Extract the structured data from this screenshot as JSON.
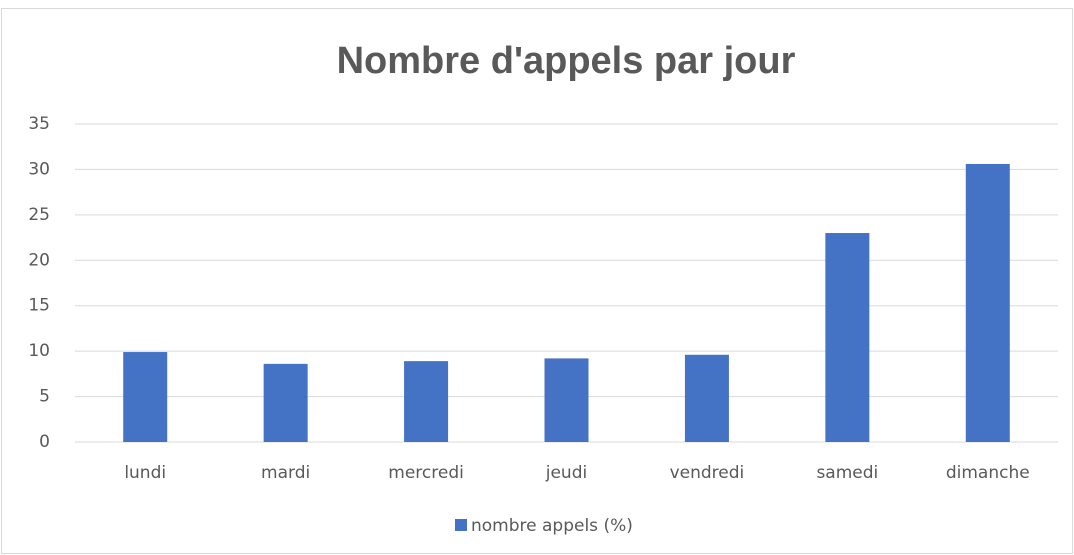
{
  "chart_data": {
    "type": "bar",
    "title": "Nombre d'appels par jour",
    "categories": [
      "lundi",
      "mardi",
      "mercredi",
      "jeudi",
      "vendredi",
      "samedi",
      "dimanche"
    ],
    "series": [
      {
        "name": "nombre appels (%)",
        "color": "#4472c4",
        "values": [
          9.9,
          8.6,
          8.9,
          9.2,
          9.6,
          23.0,
          30.6
        ]
      }
    ],
    "ylim": [
      0,
      35
    ],
    "yticks": [
      0,
      5,
      10,
      15,
      20,
      25,
      30,
      35
    ],
    "grid": true,
    "legend": "bottom"
  }
}
